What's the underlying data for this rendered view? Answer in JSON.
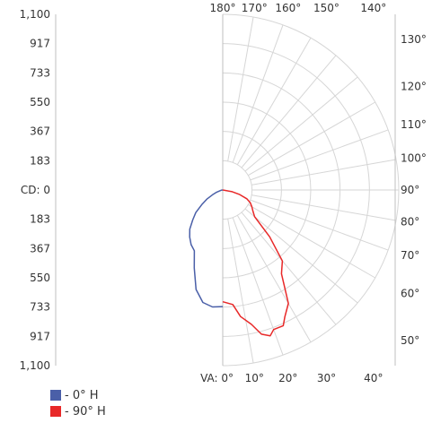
{
  "chart_data": {
    "type": "polar",
    "title": "",
    "cd_labels_top": [
      "1,100",
      "917",
      "733",
      "550",
      "367",
      "183"
    ],
    "cd_center_label": "CD: 0",
    "cd_labels_bottom": [
      "183",
      "367",
      "550",
      "733",
      "917",
      "1,100"
    ],
    "top_angle_labels": [
      "180°",
      "170°",
      "160°",
      "150°",
      "140°"
    ],
    "right_angle_labels": [
      "130°",
      "120°",
      "110°",
      "100°",
      "90°",
      "80°",
      "70°",
      "60°",
      "50°"
    ],
    "bottom_angle_labels": [
      "VA: 0°",
      "10°",
      "20°",
      "30°",
      "40°"
    ],
    "rmax": 1100,
    "rings": [
      183,
      367,
      550,
      733,
      917,
      1100
    ],
    "series": [
      {
        "name": "- 0° H",
        "color": "#4a5fa8",
        "points": [
          [
            0,
            730
          ],
          [
            5,
            735
          ],
          [
            10,
            715
          ],
          [
            15,
            645
          ],
          [
            20,
            520
          ],
          [
            25,
            420
          ],
          [
            30,
            395
          ],
          [
            35,
            360
          ],
          [
            40,
            320
          ],
          [
            45,
            265
          ],
          [
            50,
            220
          ],
          [
            55,
            160
          ],
          [
            60,
            115
          ],
          [
            65,
            70
          ],
          [
            70,
            40
          ],
          [
            80,
            10
          ],
          [
            90,
            0
          ]
        ]
      },
      {
        "name": "- 90° H",
        "color": "#e82828",
        "points": [
          [
            0,
            700
          ],
          [
            5,
            720
          ],
          [
            8,
            800
          ],
          [
            12,
            860
          ],
          [
            15,
            935
          ],
          [
            18,
            960
          ],
          [
            20,
            930
          ],
          [
            24,
            930
          ],
          [
            26,
            885
          ],
          [
            30,
            820
          ],
          [
            35,
            640
          ],
          [
            40,
            580
          ],
          [
            45,
            415
          ],
          [
            50,
            260
          ],
          [
            55,
            230
          ],
          [
            60,
            210
          ],
          [
            65,
            190
          ],
          [
            70,
            160
          ],
          [
            75,
            110
          ],
          [
            80,
            60
          ],
          [
            90,
            0
          ]
        ]
      }
    ]
  }
}
